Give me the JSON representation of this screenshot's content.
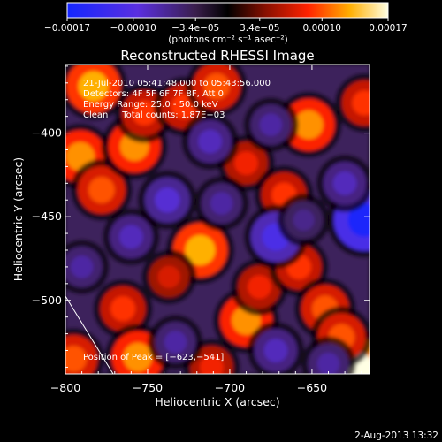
{
  "chart_data": {
    "type": "heatmap",
    "title": "Reconstructed RHESSI Image",
    "xlabel": "Heliocentric X (arcsec)",
    "ylabel": "Heliocentric Y (arcsec)",
    "xlim": [
      -800,
      -615
    ],
    "ylim": [
      -544,
      -359
    ],
    "xticks": [
      -800,
      -750,
      -700,
      -650
    ],
    "xtick_labels": [
      "−800",
      "−750",
      "−700",
      "−650"
    ],
    "yticks": [
      -400,
      -450,
      -500
    ],
    "ytick_labels": [
      "−400",
      "−450",
      "−500"
    ],
    "colorbar": {
      "range": [
        -0.00017,
        0.00017
      ],
      "ticks": [
        -0.00017,
        -0.0001,
        -3.4e-05,
        3.4e-05,
        0.0001,
        0.00017
      ],
      "tick_labels": [
        "−0.00017",
        "−0.00010",
        "−3.4e−05",
        "3.4e−05",
        "0.00010",
        "0.00017"
      ],
      "unit_label": "(photons cm⁻² s⁻¹ asec⁻²)"
    },
    "annotations": [
      "21-Jul-2010 05:41:48.000 to 05:43:56.000",
      "Detectors: 4F 5F 6F 7F 8F, Att 0",
      "Energy Range: 25.0 - 50.0 keV",
      "Clean     Total counts: 1.87E+03"
    ],
    "peak_label": "Position of Peak = [−623,−541]",
    "peak_position": [
      -623,
      -541
    ],
    "blobs": [
      {
        "x": -783,
        "y": -372,
        "v": 0.00013
      },
      {
        "x": -791,
        "y": -414,
        "v": 0.00012
      },
      {
        "x": -778,
        "y": -434,
        "v": 0.0001
      },
      {
        "x": -758,
        "y": -408,
        "v": 0.00012
      },
      {
        "x": -752,
        "y": -388,
        "v": 9e-05
      },
      {
        "x": -728,
        "y": -384,
        "v": 9e-05
      },
      {
        "x": -708,
        "y": -372,
        "v": 0.0001
      },
      {
        "x": -690,
        "y": -418,
        "v": 8e-05
      },
      {
        "x": -652,
        "y": -395,
        "v": 0.00012
      },
      {
        "x": -618,
        "y": -382,
        "v": 9e-05
      },
      {
        "x": -667,
        "y": -437,
        "v": 9e-05
      },
      {
        "x": -718,
        "y": -470,
        "v": 0.00013
      },
      {
        "x": -737,
        "y": -486,
        "v": 7e-05
      },
      {
        "x": -690,
        "y": -512,
        "v": 0.00012
      },
      {
        "x": -682,
        "y": -492,
        "v": 8e-05
      },
      {
        "x": -658,
        "y": -480,
        "v": 9e-05
      },
      {
        "x": -642,
        "y": -505,
        "v": 0.0001
      },
      {
        "x": -765,
        "y": -505,
        "v": 9e-05
      },
      {
        "x": -795,
        "y": -535,
        "v": 0.0001
      },
      {
        "x": -756,
        "y": -534,
        "v": 0.00012
      },
      {
        "x": -711,
        "y": -540,
        "v": 8e-05
      },
      {
        "x": -623,
        "y": -541,
        "v": 0.00017
      },
      {
        "x": -632,
        "y": -522,
        "v": 0.0001
      },
      {
        "x": -738,
        "y": -440,
        "v": -9e-05
      },
      {
        "x": -672,
        "y": -462,
        "v": -0.00011
      },
      {
        "x": -705,
        "y": -442,
        "v": -7e-05
      },
      {
        "x": -618,
        "y": -452,
        "v": -0.00016
      },
      {
        "x": -630,
        "y": -430,
        "v": -8e-05
      },
      {
        "x": -760,
        "y": -462,
        "v": -8e-05
      },
      {
        "x": -712,
        "y": -405,
        "v": -8e-05
      },
      {
        "x": -675,
        "y": -395,
        "v": -7e-05
      },
      {
        "x": -640,
        "y": -538,
        "v": -7e-05
      },
      {
        "x": -672,
        "y": -530,
        "v": -8e-05
      },
      {
        "x": -733,
        "y": -525,
        "v": -7e-05
      },
      {
        "x": -790,
        "y": -480,
        "v": -7e-05
      },
      {
        "x": -655,
        "y": -452,
        "v": -6e-05
      }
    ]
  },
  "footer": {
    "timestamp": "2-Aug-2013 13:32"
  }
}
